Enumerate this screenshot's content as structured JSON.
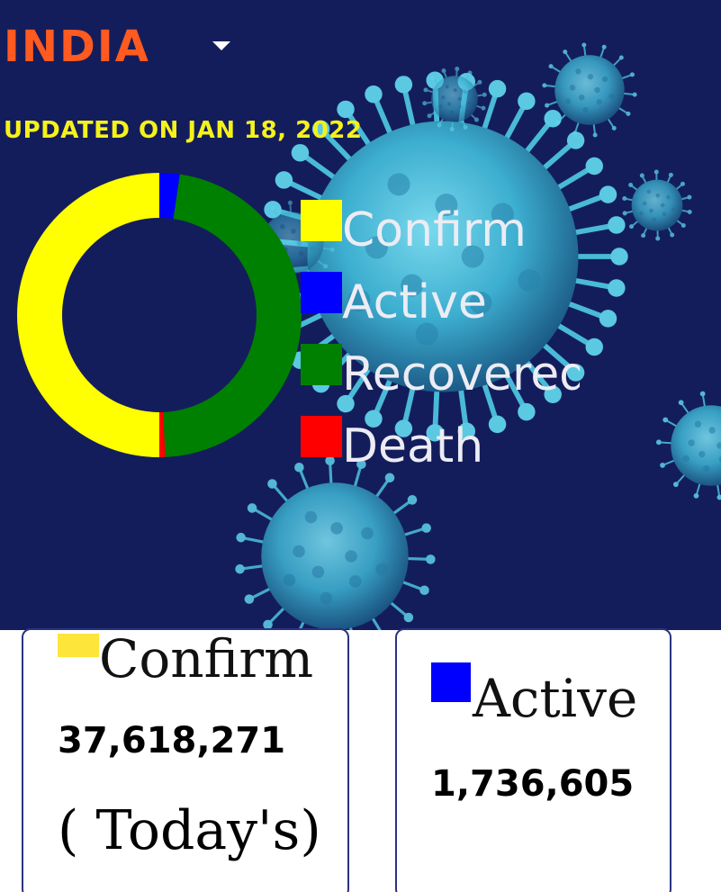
{
  "header": {
    "country": "INDIA",
    "dropdown_icon": "caret-down-icon",
    "updated": "UPDATED ON JAN 18, 2022"
  },
  "colors": {
    "background": "#141d5c",
    "country_text": "#ff5a1f",
    "updated_text": "#f5f21a",
    "confirm": "#ffff00",
    "active": "#0000ff",
    "recovered": "#008000",
    "death": "#ff0000",
    "virus": "#3fb6d6"
  },
  "chart_data": {
    "type": "pie",
    "title": "",
    "legend_position": "right",
    "categories": [
      "Confirm",
      "Active",
      "Recovered",
      "Death"
    ],
    "values": [
      37618271,
      1736605,
      35394000,
      487000
    ]
  },
  "cards": {
    "confirm": {
      "label": "Confirm",
      "value": "37,618,271",
      "note": "( Today's)"
    },
    "active": {
      "label": "Active",
      "value": "1,736,605"
    }
  }
}
